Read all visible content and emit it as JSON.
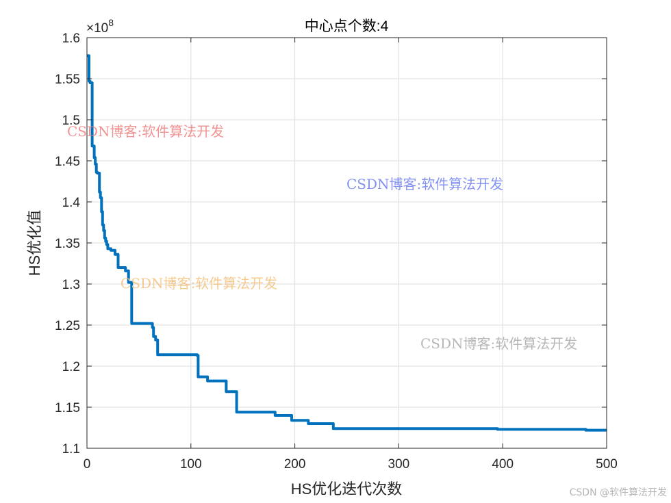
{
  "chart_data": {
    "type": "line",
    "title": "中心点个数:4",
    "xlabel": "HS优化迭代次数",
    "ylabel": "HS优化值",
    "y_multiplier": "×10",
    "y_exponent": "8",
    "xlim": [
      0,
      500
    ],
    "ylim": [
      1.1,
      1.6
    ],
    "xticks": [
      "0",
      "100",
      "200",
      "300",
      "400",
      "500"
    ],
    "yticks": [
      "1.1",
      "1.15",
      "1.2",
      "1.25",
      "1.3",
      "1.35",
      "1.4",
      "1.45",
      "1.5",
      "1.55",
      "1.6"
    ],
    "grid": true,
    "series": [
      {
        "color": "#0072BD",
        "x": [
          0,
          2,
          3,
          5,
          7,
          8,
          9,
          10,
          12,
          13,
          14,
          15,
          16,
          17,
          18,
          19,
          20,
          23,
          27,
          30,
          37,
          40,
          43,
          63,
          64,
          66,
          68,
          106,
          107,
          116,
          134,
          144,
          181,
          197,
          213,
          237,
          395,
          480,
          500
        ],
        "y": [
          1.578,
          1.547,
          1.545,
          1.468,
          1.454,
          1.446,
          1.436,
          1.435,
          1.412,
          1.405,
          1.388,
          1.372,
          1.365,
          1.356,
          1.352,
          1.348,
          1.343,
          1.341,
          1.336,
          1.32,
          1.316,
          1.302,
          1.252,
          1.247,
          1.236,
          1.232,
          1.214,
          1.213,
          1.187,
          1.182,
          1.169,
          1.144,
          1.14,
          1.134,
          1.13,
          1.124,
          1.123,
          1.122,
          1.122
        ]
      }
    ]
  },
  "watermarks": [
    "CSDN博客:软件算法开发",
    "CSDN博客:软件算法开发",
    "CSDN博客:软件算法开发",
    "CSDN博客:软件算法开发"
  ],
  "credit": "CSDN @软件算法开发"
}
